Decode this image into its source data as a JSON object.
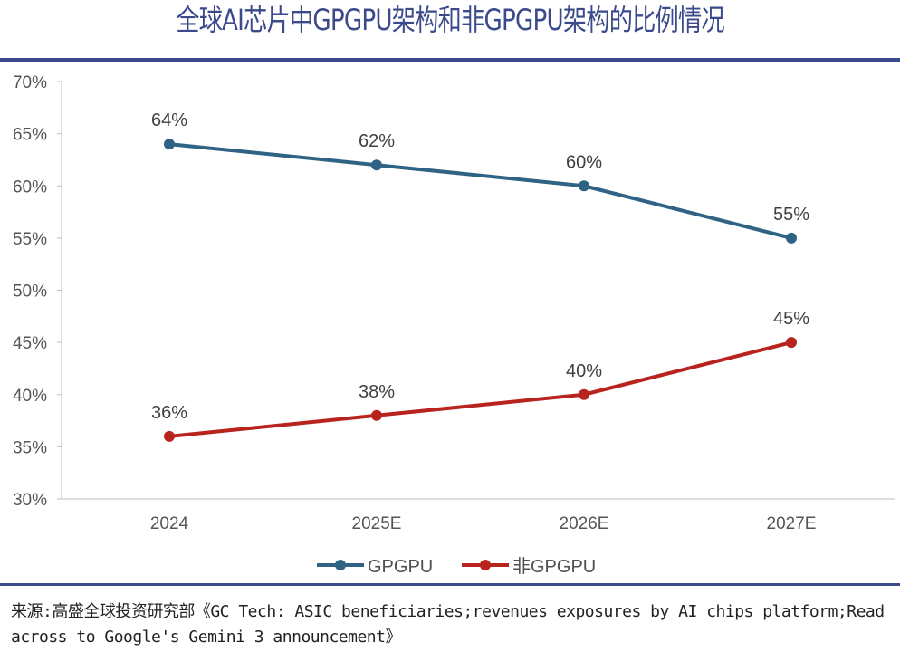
{
  "chart_data": {
    "type": "line",
    "title": "全球AI芯片中GPGPU架构和非GPGPU架构的比例情况",
    "categories": [
      "2024",
      "2025E",
      "2026E",
      "2027E"
    ],
    "series": [
      {
        "name": "GPGPU",
        "values": [
          64,
          62,
          60,
          55
        ],
        "labels": [
          "64%",
          "62%",
          "60%",
          "55%"
        ],
        "color": "#2e6384"
      },
      {
        "name": "非GPGPU",
        "values": [
          36,
          38,
          40,
          45
        ],
        "labels": [
          "36%",
          "38%",
          "40%",
          "45%"
        ],
        "color": "#b8231e"
      }
    ],
    "ylim": [
      30,
      70
    ],
    "yticks": [
      30,
      35,
      40,
      45,
      50,
      55,
      60,
      65,
      70
    ],
    "ytick_labels": [
      "30%",
      "35%",
      "40%",
      "45%",
      "50%",
      "55%",
      "60%",
      "65%",
      "70%"
    ],
    "grid": false,
    "legend": "bottom",
    "xlabel": "",
    "ylabel": ""
  },
  "source": "来源:高盛全球投资研究部《GC Tech: ASIC beneficiaries;revenues exposures by AI chips platform;Read across to Google's Gemini 3 announcement》",
  "accent_color": "#3b4a8a"
}
